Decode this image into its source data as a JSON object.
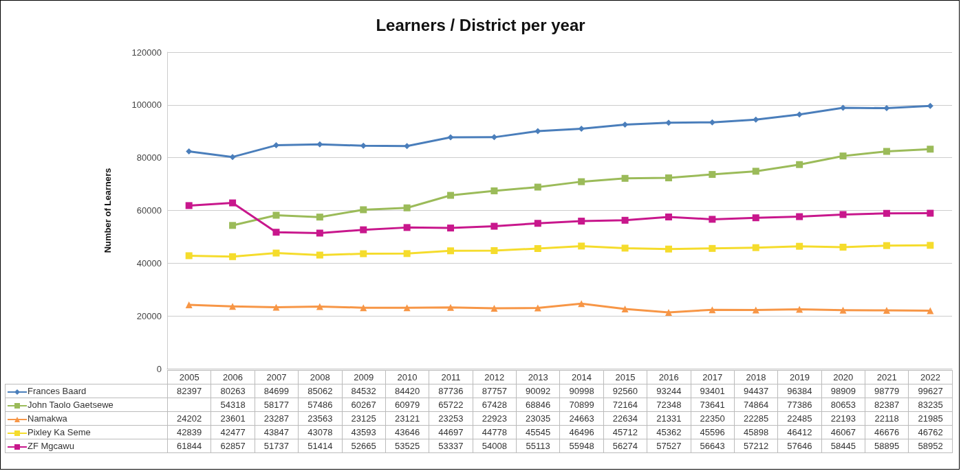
{
  "chart_data": {
    "type": "line",
    "title": "Learners / District per year",
    "ylabel": "Number of Learners",
    "categories": [
      "2005",
      "2006",
      "2007",
      "2008",
      "2009",
      "2010",
      "2011",
      "2012",
      "2013",
      "2014",
      "2015",
      "2016",
      "2017",
      "2018",
      "2019",
      "2020",
      "2021",
      "2022"
    ],
    "ylim": [
      0,
      120000
    ],
    "yticks": [
      0,
      20000,
      40000,
      60000,
      80000,
      100000,
      120000
    ],
    "grid": "y",
    "legend": "bottom",
    "data_labels": true,
    "series": [
      {
        "name": "Frances Baard",
        "color": "#4a7ebb",
        "marker": "diamond",
        "values": [
          82397,
          80263,
          84699,
          85062,
          84532,
          84420,
          87736,
          87757,
          90092,
          90998,
          92560,
          93244,
          93401,
          94437,
          96384,
          98909,
          98779,
          99627
        ]
      },
      {
        "name": "John Taolo Gaetsewe",
        "color": "#9bbb59",
        "marker": "square",
        "values": [
          null,
          54318,
          58177,
          57486,
          60267,
          60979,
          65722,
          67428,
          68846,
          70899,
          72164,
          72348,
          73641,
          74864,
          77386,
          80653,
          82387,
          83235
        ]
      },
      {
        "name": "Namakwa",
        "color": "#f79646",
        "marker": "triangle",
        "values": [
          24202,
          23601,
          23287,
          23563,
          23125,
          23121,
          23253,
          22923,
          23035,
          24663,
          22634,
          21331,
          22350,
          22285,
          22485,
          22193,
          22118,
          21985
        ]
      },
      {
        "name": "Pixley Ka Seme",
        "color": "#f5dc2c",
        "marker": "square",
        "values": [
          42839,
          42477,
          43847,
          43078,
          43593,
          43646,
          44697,
          44778,
          45545,
          46496,
          45712,
          45362,
          45596,
          45898,
          46412,
          46067,
          46676,
          46762
        ]
      },
      {
        "name": "ZF Mgcawu",
        "color": "#c8178c",
        "marker": "square",
        "values": [
          61844,
          62857,
          51737,
          51414,
          52665,
          53525,
          53337,
          54008,
          55113,
          55948,
          56274,
          57527,
          56643,
          57212,
          57646,
          58445,
          58895,
          58952
        ]
      }
    ]
  }
}
